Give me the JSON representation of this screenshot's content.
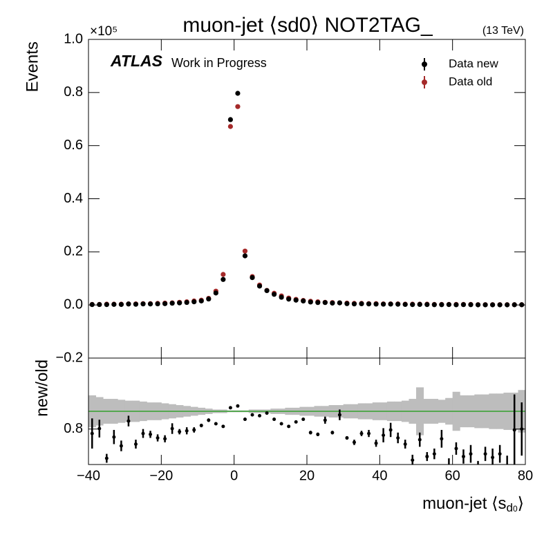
{
  "chart_data": {
    "type": "ratio_scatter",
    "title": "muon-jet ⟨sd0⟩ NOT2TAG_",
    "energy_label": "(13 TeV)",
    "experiment": "ATLAS",
    "status": "Work in Progress",
    "ylabel": "Events",
    "y_multiplier": "×10⁵",
    "xlabel_parts": [
      "muon-jet ⟨s",
      "d",
      "0",
      "⟩"
    ],
    "ratio_ylabel": "new/old",
    "x": [
      -39,
      -37,
      -35,
      -33,
      -31,
      -29,
      -27,
      -25,
      -23,
      -21,
      -19,
      -17,
      -15,
      -13,
      -11,
      -9,
      -7,
      -5,
      -3,
      -1,
      1,
      3,
      5,
      7,
      9,
      11,
      13,
      15,
      17,
      19,
      21,
      23,
      25,
      27,
      29,
      31,
      33,
      35,
      37,
      39,
      41,
      43,
      45,
      47,
      49,
      51,
      53,
      55,
      57,
      59,
      61,
      63,
      65,
      67,
      69,
      71,
      73,
      75,
      77,
      79
    ],
    "series": [
      {
        "name": "Data new",
        "color": "#000000",
        "values": [
          0.0015,
          0.0016,
          0.0014,
          0.0021,
          0.0018,
          0.0036,
          0.0025,
          0.0038,
          0.0037,
          0.0042,
          0.0048,
          0.0064,
          0.0077,
          0.0094,
          0.0118,
          0.0151,
          0.0225,
          0.045,
          0.096,
          0.698,
          0.797,
          0.185,
          0.103,
          0.071,
          0.054,
          0.04,
          0.029,
          0.022,
          0.018,
          0.015,
          0.011,
          0.009,
          0.009,
          0.007,
          0.008,
          0.0049,
          0.0039,
          0.0045,
          0.0038,
          0.0032,
          0.0029,
          0.0032,
          0.0028,
          0.0019,
          0.0014,
          0.002,
          0.0015,
          0.001,
          0.001,
          0.0014,
          0.0007,
          0.0012,
          0.001,
          0.0005,
          0.0005,
          0.0005,
          0.0005,
          0.0004,
          0.0008,
          0.0008
        ]
      },
      {
        "name": "Data old",
        "color": "#a52a2a",
        "values": [
          0.002,
          0.002,
          0.003,
          0.003,
          0.003,
          0.004,
          0.004,
          0.005,
          0.005,
          0.006,
          0.007,
          0.008,
          0.01,
          0.012,
          0.015,
          0.018,
          0.025,
          0.052,
          0.115,
          0.672,
          0.747,
          0.203,
          0.107,
          0.075,
          0.055,
          0.044,
          0.034,
          0.026,
          0.021,
          0.017,
          0.014,
          0.012,
          0.01,
          0.009,
          0.008,
          0.007,
          0.006,
          0.006,
          0.005,
          0.005,
          0.004,
          0.004,
          0.004,
          0.003,
          0.003,
          0.003,
          0.003,
          0.002,
          0.002,
          0.002,
          0.002,
          0.002,
          0.002,
          0.001,
          0.001,
          0.001,
          0.001,
          0.001,
          0.001,
          0.001
        ]
      }
    ],
    "ratio": {
      "color": "#000000",
      "values": [
        0.75,
        0.805,
        0.47,
        0.71,
        0.61,
        0.89,
        0.63,
        0.75,
        0.74,
        0.7,
        0.69,
        0.805,
        0.77,
        0.78,
        0.79,
        0.84,
        0.9,
        0.86,
        0.83,
        1.04,
        1.06,
        0.91,
        0.96,
        0.95,
        0.98,
        0.91,
        0.86,
        0.83,
        0.88,
        0.91,
        0.76,
        0.74,
        0.9,
        0.76,
        0.96,
        0.7,
        0.65,
        0.75,
        0.75,
        0.64,
        0.73,
        0.79,
        0.7,
        0.63,
        0.45,
        0.68,
        0.49,
        0.52,
        0.69,
        0.35,
        0.58,
        0.49,
        0.52,
        0.34,
        0.52,
        0.48,
        0.52,
        0.38,
        0.79,
        0.8
      ],
      "errors": [
        0.17,
        0.1,
        0.05,
        0.08,
        0.06,
        0.06,
        0.05,
        0.05,
        0.04,
        0.04,
        0.04,
        0.06,
        0.03,
        0.04,
        0.03,
        0.02,
        0.02,
        0.01,
        0.01,
        0.01,
        0.01,
        0.01,
        0.01,
        0.01,
        0.01,
        0.01,
        0.01,
        0.01,
        0.01,
        0.01,
        0.02,
        0.02,
        0.04,
        0.02,
        0.06,
        0.02,
        0.03,
        0.03,
        0.04,
        0.04,
        0.08,
        0.08,
        0.06,
        0.05,
        0.06,
        0.08,
        0.05,
        0.06,
        0.1,
        0.12,
        0.07,
        0.08,
        0.1,
        0.1,
        0.08,
        0.1,
        0.1,
        0.12,
        0.4,
        0.3
      ],
      "band_color": "#bdbdbd",
      "band_errors": [
        0.18,
        0.16,
        0.14,
        0.14,
        0.13,
        0.12,
        0.12,
        0.11,
        0.1,
        0.1,
        0.09,
        0.08,
        0.07,
        0.06,
        0.05,
        0.04,
        0.03,
        0.02,
        0.02,
        0.01,
        0.01,
        0.01,
        0.02,
        0.02,
        0.02,
        0.03,
        0.03,
        0.04,
        0.04,
        0.05,
        0.05,
        0.06,
        0.06,
        0.07,
        0.07,
        0.08,
        0.08,
        0.09,
        0.09,
        0.1,
        0.1,
        0.11,
        0.11,
        0.12,
        0.14,
        0.27,
        0.14,
        0.14,
        0.13,
        0.15,
        0.22,
        0.18,
        0.18,
        0.19,
        0.19,
        0.2,
        0.2,
        0.21,
        0.21,
        0.24
      ],
      "reference": 1,
      "reference_color": "#33a02c",
      "ylim": [
        0.4,
        1.6
      ],
      "yticks": [
        0.8
      ]
    },
    "xlim": [
      -40,
      80
    ],
    "xticks": [
      {
        "value": -40,
        "label": "−40"
      },
      {
        "value": -20,
        "label": "−20"
      },
      0,
      20,
      40,
      60,
      80
    ],
    "ylim": [
      -0.2,
      1.0
    ],
    "yticks": [
      {
        "value": -0.2,
        "label": "−0.2"
      },
      {
        "value": 0,
        "label": "0.0"
      },
      0.2,
      0.4,
      0.6,
      0.8,
      {
        "value": 1,
        "label": "1.0"
      }
    ],
    "legend": "upper right"
  }
}
